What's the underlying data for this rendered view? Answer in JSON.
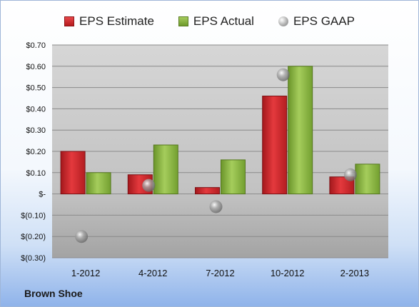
{
  "company": "Brown Shoe",
  "colors": {
    "estimate": "#c8262b",
    "actual": "#8db848",
    "gaap": "#9a9a9a"
  },
  "chart_data": {
    "type": "bar",
    "categories": [
      "1-2012",
      "4-2012",
      "7-2012",
      "10-2012",
      "2-2013"
    ],
    "series": [
      {
        "name": "EPS Estimate",
        "values": [
          0.2,
          0.09,
          0.03,
          0.46,
          0.08
        ],
        "render": "bar"
      },
      {
        "name": "EPS Actual",
        "values": [
          0.1,
          0.23,
          0.16,
          0.6,
          0.14
        ],
        "render": "bar"
      },
      {
        "name": "EPS GAAP",
        "values": [
          -0.2,
          0.04,
          -0.06,
          0.56,
          0.09
        ],
        "render": "marker"
      }
    ],
    "ylim": [
      -0.3,
      0.7
    ],
    "yticks": [
      0.7,
      0.6,
      0.5,
      0.4,
      0.3,
      0.2,
      0.1,
      0,
      -0.1,
      -0.2,
      -0.3
    ],
    "ytick_labels": [
      "$0.70",
      "$0.60",
      "$0.50",
      "$0.40",
      "$0.30",
      "$0.20",
      "$0.10",
      "$-",
      "$(0.10)",
      "$(0.20)",
      "$(0.30)"
    ],
    "grid": true,
    "legend": "top"
  }
}
